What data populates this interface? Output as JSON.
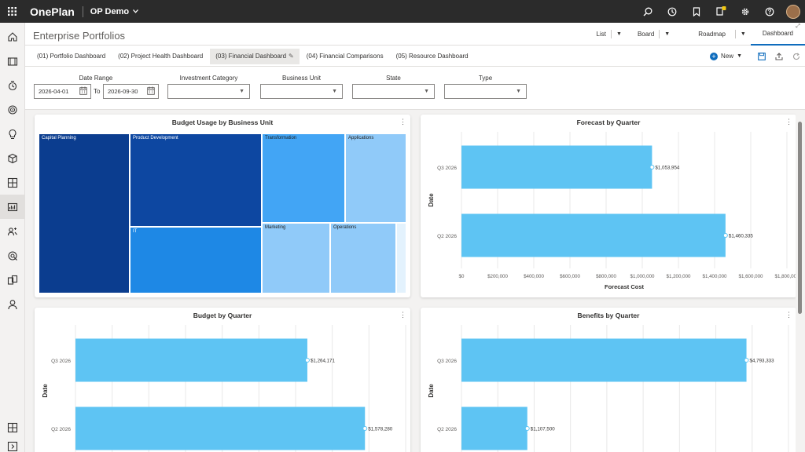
{
  "app": {
    "brand": "OnePlan",
    "tenant": "OP Demo"
  },
  "top_icons": [
    "search-icon",
    "history-icon",
    "bookmark-icon",
    "notification-icon",
    "settings-icon",
    "help-icon",
    "avatar"
  ],
  "rail_items": [
    "home-icon",
    "portfolio-icon",
    "timesheet-icon",
    "target-icon",
    "idea-icon",
    "resource-icon",
    "layout-icon",
    "dashboard-icon",
    "people-icon",
    "planning-icon",
    "reports-icon",
    "user-icon"
  ],
  "page_title": "Enterprise Portfolios",
  "views": {
    "list": "List",
    "board": "Board",
    "roadmap": "Roadmap",
    "dashboard": "Dashboard"
  },
  "tabs": [
    "(01) Portfolio Dashboard",
    "(02) Project Health Dashboard",
    "(03) Financial Dashboard",
    "(04) Financial Comparisons",
    "(05) Resource Dashboard"
  ],
  "actions": {
    "new_label": "New"
  },
  "filters": {
    "date_range_label": "Date Range",
    "date_from": "2026-04-01",
    "to_label": "To",
    "date_to": "2026-09-30",
    "investment_category_label": "Investment Category",
    "business_unit_label": "Business Unit",
    "state_label": "State",
    "type_label": "Type"
  },
  "cards": {
    "budget_usage": {
      "title": "Budget Usage by Business Unit",
      "tiles": [
        "Capital Planning",
        "Product Development",
        "Transformation",
        "Applications",
        "IT",
        "Marketing",
        "Operations"
      ]
    },
    "forecast": {
      "title": "Forecast by Quarter"
    },
    "budget": {
      "title": "Budget by Quarter"
    },
    "benefits": {
      "title": "Benefits by Quarter"
    }
  },
  "colors": {
    "accent": "#0f6cbd",
    "bar": "#5ec4f3",
    "topbar": "#2b2b2b"
  },
  "chart_data": [
    {
      "type": "bar",
      "orientation": "horizontal",
      "title": "Forecast by Quarter",
      "xlabel": "Forecast Cost",
      "ylabel": "Date",
      "categories": [
        "Q3 2026",
        "Q2 2026"
      ],
      "values": [
        1053954,
        1460335
      ],
      "labels": [
        "$1,053,954",
        "$1,460,335"
      ],
      "xlim": [
        0,
        1800000
      ],
      "ticks": [
        "$0",
        "$200,000",
        "$400,000",
        "$600,000",
        "$800,000",
        "$1,000,000",
        "$1,200,000",
        "$1,400,000",
        "$1,600,000",
        "$1,800,000"
      ]
    },
    {
      "type": "bar",
      "orientation": "horizontal",
      "title": "Budget by Quarter",
      "ylabel": "Date",
      "categories": [
        "Q3 2026",
        "Q2 2026"
      ],
      "values": [
        1264171,
        1578280
      ],
      "labels": [
        "$1,264,171",
        "$1,578,280"
      ],
      "xlim": [
        0,
        1800000
      ]
    },
    {
      "type": "bar",
      "orientation": "horizontal",
      "title": "Benefits by Quarter",
      "ylabel": "Date",
      "categories": [
        "Q3 2026",
        "Q2 2026"
      ],
      "values": [
        4793333,
        1107500
      ],
      "labels": [
        "$4,793,333",
        "$1,107,500"
      ],
      "xlim": [
        0,
        5500000
      ]
    }
  ]
}
